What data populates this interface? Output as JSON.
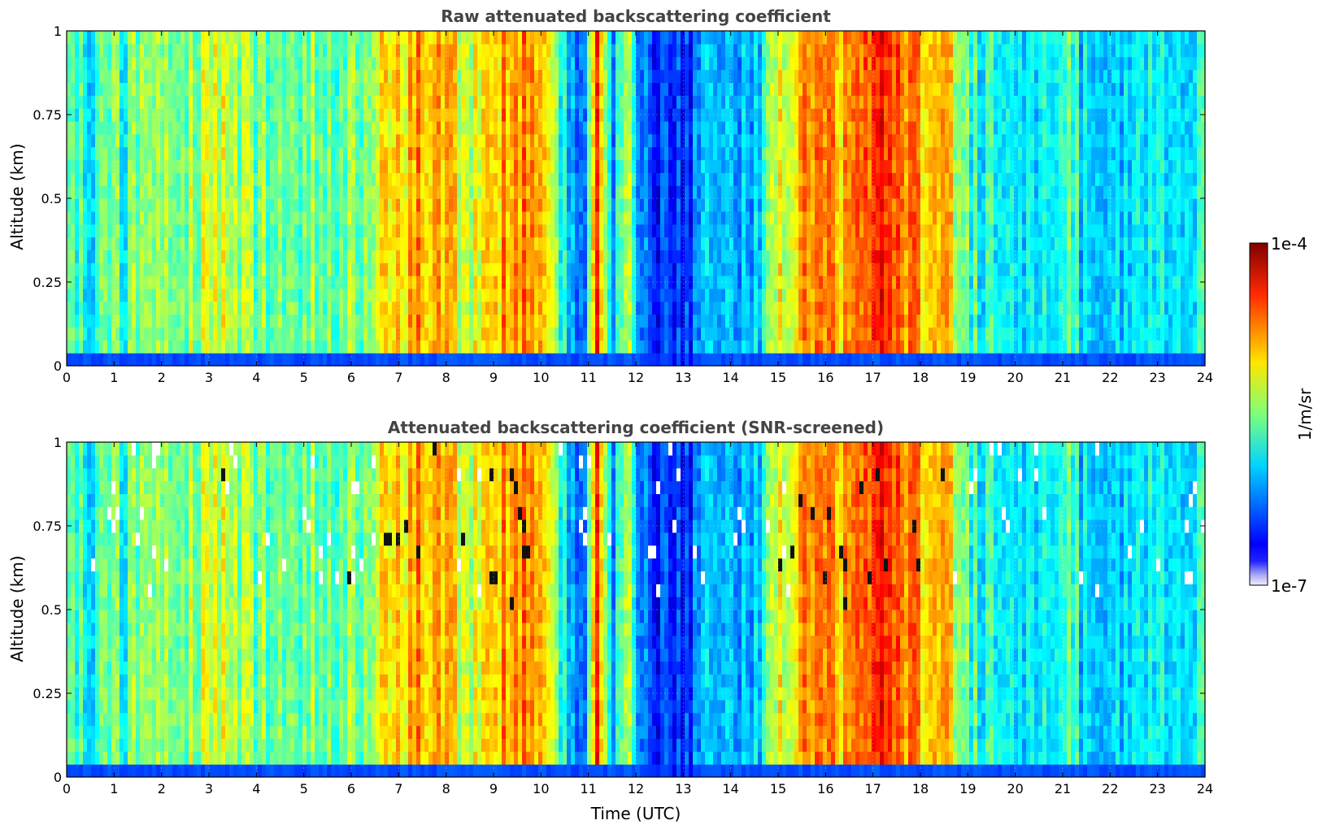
{
  "chart_data": [
    {
      "type": "heatmap",
      "title": "Raw attenuated backscattering coefficient",
      "xlabel": "",
      "ylabel": "Altitude (km)",
      "x_ticks": [
        "0",
        "1",
        "2",
        "3",
        "4",
        "5",
        "6",
        "7",
        "8",
        "9",
        "10",
        "11",
        "12",
        "13",
        "14",
        "15",
        "16",
        "17",
        "18",
        "19",
        "20",
        "21",
        "22",
        "23",
        "24"
      ],
      "y_ticks": [
        "0",
        "0.25",
        "0.5",
        "0.75",
        "1"
      ],
      "xlim": [
        0,
        24
      ],
      "ylim": [
        0,
        1
      ],
      "color_scale": "log",
      "grid": true,
      "time_profile_log10": [
        [
          0,
          -5.7
        ],
        [
          0.5,
          -5.85
        ],
        [
          1,
          -5.7
        ],
        [
          1.5,
          -5.6
        ],
        [
          2,
          -5.6
        ],
        [
          2.5,
          -5.4
        ],
        [
          3,
          -5.3
        ],
        [
          3.5,
          -5.3
        ],
        [
          4,
          -5.5
        ],
        [
          4.5,
          -5.6
        ],
        [
          5,
          -5.5
        ],
        [
          5.5,
          -5.5
        ],
        [
          6,
          -5.5
        ],
        [
          6.5,
          -5.5
        ],
        [
          6.8,
          -5.0
        ],
        [
          7.5,
          -4.9
        ],
        [
          8,
          -5.0
        ],
        [
          8.5,
          -5.4
        ],
        [
          9,
          -4.9
        ],
        [
          9.5,
          -4.8
        ],
        [
          10,
          -4.9
        ],
        [
          10.5,
          -5.8
        ],
        [
          10.9,
          -6.5
        ],
        [
          11.2,
          -4.6
        ],
        [
          11.5,
          -6.3
        ],
        [
          11.8,
          -5.3
        ],
        [
          12.2,
          -6.4
        ],
        [
          13,
          -6.5
        ],
        [
          13.5,
          -6.2
        ],
        [
          14,
          -6.0
        ],
        [
          14.5,
          -6.2
        ],
        [
          15,
          -5.3
        ],
        [
          15.5,
          -4.9
        ],
        [
          16,
          -4.8
        ],
        [
          16.5,
          -5.0
        ],
        [
          17,
          -4.6
        ],
        [
          17.5,
          -4.4
        ],
        [
          18,
          -5.0
        ],
        [
          18.5,
          -4.9
        ],
        [
          19,
          -5.7
        ],
        [
          19.5,
          -5.9
        ],
        [
          20,
          -5.8
        ],
        [
          20.5,
          -5.85
        ],
        [
          21,
          -5.6
        ],
        [
          21.5,
          -6.0
        ],
        [
          22,
          -6.0
        ],
        [
          22.5,
          -5.8
        ],
        [
          23,
          -5.9
        ],
        [
          23.5,
          -5.9
        ],
        [
          24,
          -5.7
        ]
      ],
      "surface_layer_log10": -6.4,
      "screened": false
    },
    {
      "type": "heatmap",
      "title": "Attenuated backscattering coefficient (SNR-screened)",
      "xlabel": "Time (UTC)",
      "ylabel": "Altitude (km)",
      "x_ticks": [
        "0",
        "1",
        "2",
        "3",
        "4",
        "5",
        "6",
        "7",
        "8",
        "9",
        "10",
        "11",
        "12",
        "13",
        "14",
        "15",
        "16",
        "17",
        "18",
        "19",
        "20",
        "21",
        "22",
        "23",
        "24"
      ],
      "y_ticks": [
        "0",
        "0.25",
        "0.5",
        "0.75",
        "1"
      ],
      "xlim": [
        0,
        24
      ],
      "ylim": [
        0,
        1
      ],
      "color_scale": "log",
      "grid": true,
      "time_profile_log10": [
        [
          0,
          -5.7
        ],
        [
          0.5,
          -5.85
        ],
        [
          1,
          -5.7
        ],
        [
          1.5,
          -5.6
        ],
        [
          2,
          -5.6
        ],
        [
          2.5,
          -5.4
        ],
        [
          3,
          -5.3
        ],
        [
          3.5,
          -5.3
        ],
        [
          4,
          -5.5
        ],
        [
          4.5,
          -5.6
        ],
        [
          5,
          -5.5
        ],
        [
          5.5,
          -5.5
        ],
        [
          6,
          -5.5
        ],
        [
          6.5,
          -5.5
        ],
        [
          6.8,
          -5.0
        ],
        [
          7.5,
          -4.9
        ],
        [
          8,
          -5.0
        ],
        [
          8.5,
          -5.4
        ],
        [
          9,
          -4.9
        ],
        [
          9.5,
          -4.8
        ],
        [
          10,
          -4.9
        ],
        [
          10.5,
          -5.8
        ],
        [
          10.9,
          -6.5
        ],
        [
          11.2,
          -4.6
        ],
        [
          11.5,
          -6.3
        ],
        [
          11.8,
          -5.3
        ],
        [
          12.2,
          -6.4
        ],
        [
          13,
          -6.5
        ],
        [
          13.5,
          -6.2
        ],
        [
          14,
          -6.0
        ],
        [
          14.5,
          -6.2
        ],
        [
          15,
          -5.3
        ],
        [
          15.5,
          -4.9
        ],
        [
          16,
          -4.8
        ],
        [
          16.5,
          -5.0
        ],
        [
          17,
          -4.6
        ],
        [
          17.5,
          -4.4
        ],
        [
          18,
          -5.0
        ],
        [
          18.5,
          -4.9
        ],
        [
          19,
          -5.7
        ],
        [
          19.5,
          -5.9
        ],
        [
          20,
          -5.8
        ],
        [
          20.5,
          -5.85
        ],
        [
          21,
          -5.6
        ],
        [
          21.5,
          -6.0
        ],
        [
          22,
          -6.0
        ],
        [
          22.5,
          -5.8
        ],
        [
          23,
          -5.9
        ],
        [
          23.5,
          -5.9
        ],
        [
          24,
          -5.7
        ]
      ],
      "surface_layer_log10": -6.4,
      "screened": true
    }
  ],
  "colorbar": {
    "label": "1/m/sr",
    "max_label": "1e-4",
    "min_label": "1e-7",
    "vmin_log10": -7,
    "vmax_log10": -4,
    "colormap": "jet",
    "low_color": "#e6e6fa"
  }
}
